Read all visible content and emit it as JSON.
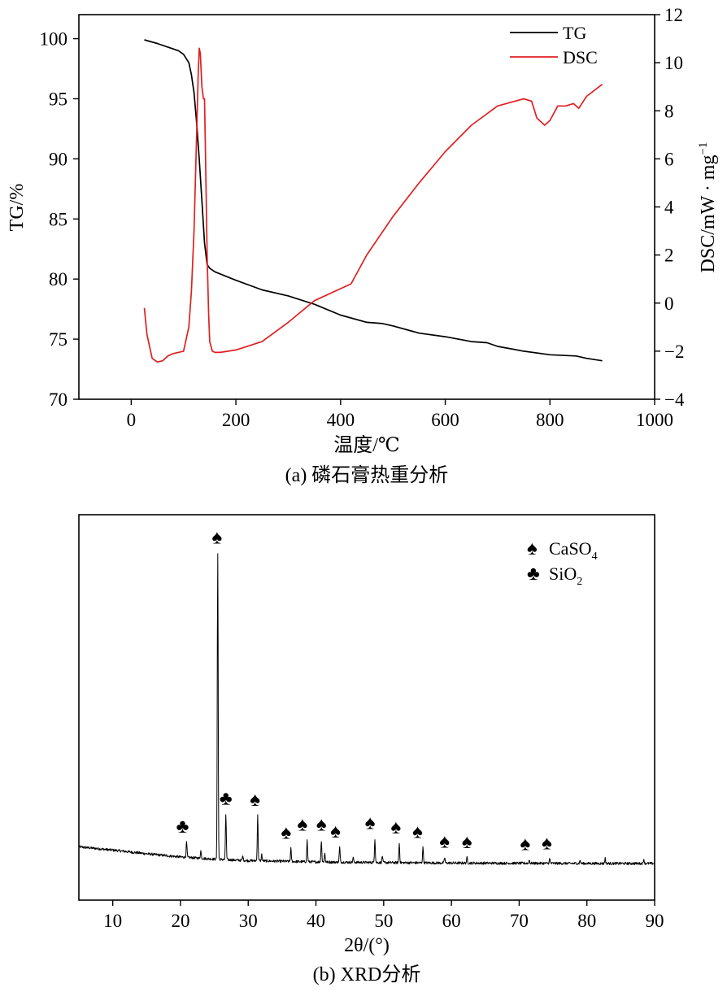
{
  "chart_data": [
    {
      "type": "line",
      "caption": "(a) 磷石膏热重分析",
      "xlabel": "温度/℃",
      "ylabel_left": "TG/%",
      "ylabel_right_prefix": "DSC/mW · mg",
      "ylabel_right_exponent": "−1",
      "xlim": [
        -100,
        1000
      ],
      "ylim_left": [
        70,
        102
      ],
      "ylim_right": [
        -4,
        12
      ],
      "x_ticks": [
        0,
        200,
        400,
        600,
        800,
        1000
      ],
      "y_left_ticks": [
        70,
        75,
        80,
        85,
        90,
        95,
        100
      ],
      "y_right_ticks": [
        -4,
        -2,
        0,
        2,
        4,
        6,
        8,
        10,
        12
      ],
      "legend_position": "top-right",
      "series": [
        {
          "name": "TG",
          "axis": "left",
          "color": "#000000",
          "x": [
            25,
            50,
            70,
            90,
            100,
            110,
            115,
            120,
            125,
            130,
            135,
            140,
            145,
            150,
            160,
            200,
            250,
            300,
            350,
            400,
            450,
            480,
            500,
            550,
            600,
            650,
            680,
            700,
            750,
            800,
            850,
            870,
            900
          ],
          "y": [
            99.9,
            99.6,
            99.3,
            99.0,
            98.7,
            98.0,
            97.0,
            95.5,
            93.0,
            90.0,
            86.5,
            83.0,
            81.2,
            80.9,
            80.6,
            79.9,
            79.1,
            78.6,
            77.9,
            77.0,
            76.4,
            76.3,
            76.1,
            75.5,
            75.2,
            74.8,
            74.7,
            74.4,
            74.0,
            73.7,
            73.6,
            73.4,
            73.2
          ]
        },
        {
          "name": "DSC",
          "axis": "right",
          "color": "#e02020",
          "x": [
            25,
            30,
            40,
            50,
            60,
            70,
            80,
            90,
            100,
            110,
            115,
            120,
            125,
            128,
            130,
            132,
            135,
            138,
            140,
            142,
            145,
            148,
            150,
            155,
            160,
            170,
            200,
            250,
            300,
            350,
            400,
            420,
            450,
            500,
            550,
            600,
            650,
            700,
            750,
            765,
            775,
            790,
            800,
            815,
            830,
            845,
            855,
            870,
            900
          ],
          "y": [
            -0.2,
            -1.3,
            -2.3,
            -2.45,
            -2.4,
            -2.2,
            -2.1,
            -2.05,
            -2.0,
            -1.0,
            0.5,
            3.0,
            7.0,
            9.5,
            10.6,
            10.4,
            9.0,
            8.5,
            8.5,
            6.0,
            2.0,
            -0.5,
            -1.6,
            -2.0,
            -2.05,
            -2.05,
            -1.95,
            -1.6,
            -0.8,
            0.1,
            0.6,
            0.8,
            2.0,
            3.6,
            5.0,
            6.3,
            7.4,
            8.2,
            8.5,
            8.4,
            7.7,
            7.4,
            7.6,
            8.2,
            8.2,
            8.3,
            8.1,
            8.6,
            9.1
          ]
        }
      ]
    },
    {
      "type": "line",
      "caption": "(b) XRD分析",
      "xlabel": "2θ/(°)",
      "xlim": [
        5,
        90
      ],
      "x_ticks": [
        10,
        20,
        30,
        40,
        50,
        60,
        70,
        80,
        90
      ],
      "y_ticks": [],
      "legend_position": "top-right",
      "legend": [
        {
          "symbol": "♠",
          "label": "CaSO",
          "subscript": "4"
        },
        {
          "symbol": "♣",
          "label": "SiO",
          "subscript": "2"
        }
      ],
      "series": [
        {
          "name": "XRD",
          "color": "#000000",
          "baseline": [
            [
              5,
              10.0
            ],
            [
              10,
              8.5
            ],
            [
              15,
              6.8
            ],
            [
              20,
              5.3
            ],
            [
              25,
              4.3
            ],
            [
              30,
              3.6
            ],
            [
              40,
              3.0
            ],
            [
              50,
              2.7
            ],
            [
              60,
              2.5
            ],
            [
              70,
              2.4
            ],
            [
              80,
              2.3
            ],
            [
              90,
              2.3
            ]
          ],
          "peaks": [
            [
              20.9,
              7.0
            ],
            [
              23.0,
              3.5
            ],
            [
              25.5,
              142.0
            ],
            [
              26.7,
              21.0
            ],
            [
              29.2,
              2.0
            ],
            [
              31.4,
              21.0
            ],
            [
              32.0,
              3.0
            ],
            [
              36.3,
              6.0
            ],
            [
              38.7,
              10.0
            ],
            [
              40.8,
              10.0
            ],
            [
              41.3,
              4.0
            ],
            [
              43.5,
              7.0
            ],
            [
              45.5,
              2.0
            ],
            [
              48.7,
              11.0
            ],
            [
              49.8,
              3.0
            ],
            [
              52.3,
              9.0
            ],
            [
              55.8,
              7.0
            ],
            [
              59.0,
              2.5
            ],
            [
              62.3,
              2.5
            ],
            [
              71.5,
              1.5
            ],
            [
              74.5,
              2.0
            ],
            [
              79.0,
              1.5
            ],
            [
              82.7,
              2.5
            ],
            [
              88.4,
              2.0
            ]
          ]
        }
      ],
      "peak_markers": [
        {
          "x": 20.3,
          "symbol": "♣"
        },
        {
          "x": 25.4,
          "symbol": "♠"
        },
        {
          "x": 26.7,
          "symbol": "♣"
        },
        {
          "x": 31.0,
          "symbol": "♠"
        },
        {
          "x": 35.6,
          "symbol": "♠"
        },
        {
          "x": 38.0,
          "symbol": "♠"
        },
        {
          "x": 40.8,
          "symbol": "♠"
        },
        {
          "x": 42.9,
          "symbol": "♠"
        },
        {
          "x": 48.0,
          "symbol": "♠"
        },
        {
          "x": 51.8,
          "symbol": "♠"
        },
        {
          "x": 55.0,
          "symbol": "♠"
        },
        {
          "x": 59.0,
          "symbol": "♠"
        },
        {
          "x": 62.3,
          "symbol": "♠"
        },
        {
          "x": 70.9,
          "symbol": "♠"
        },
        {
          "x": 74.1,
          "symbol": "♠"
        }
      ]
    }
  ]
}
